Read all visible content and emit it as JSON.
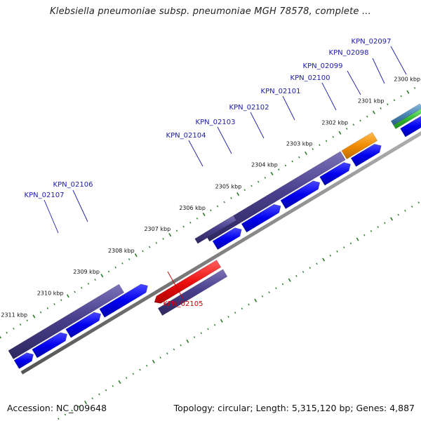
{
  "title": "Klebsiella pneumoniae subsp. pneumoniae MGH 78578, complete ...",
  "footer": {
    "accession": "Accession: NC_009648",
    "summary": "Topology: circular; Length: 5,315,120 bp; Genes: 4,887"
  },
  "colors": {
    "gene_label": "#1a1aaa",
    "gene_label_highlight": "#cc0000",
    "cds_blue": "#0000ee",
    "gene_purple": "#4a3f8c",
    "highlight_red": "#ee1111",
    "orange": "#f08c00",
    "green": "#33bb33",
    "steelblue": "#4a86b4",
    "tick_green": "#2a7a2a",
    "backbone_gray": "#888888"
  },
  "position_ticks": [
    {
      "label": "2300 kbp"
    },
    {
      "label": "2301 kbp"
    },
    {
      "label": "2302 kbp"
    },
    {
      "label": "2303 kbp"
    },
    {
      "label": "2304 kbp"
    },
    {
      "label": "2305 kbp"
    },
    {
      "label": "2306 kbp"
    },
    {
      "label": "2307 kbp"
    },
    {
      "label": "2308 kbp"
    },
    {
      "label": "2309 kbp"
    },
    {
      "label": "2310 kbp"
    },
    {
      "label": "2311 kbp"
    }
  ],
  "genes": [
    {
      "label": "KPN_02097",
      "highlight": false
    },
    {
      "label": "KPN_02098",
      "highlight": false
    },
    {
      "label": "KPN_02099",
      "highlight": false
    },
    {
      "label": "KPN_02100",
      "highlight": false
    },
    {
      "label": "KPN_02101",
      "highlight": false
    },
    {
      "label": "KPN_02102",
      "highlight": false
    },
    {
      "label": "KPN_02103",
      "highlight": false
    },
    {
      "label": "KPN_02104",
      "highlight": false
    },
    {
      "label": "KPN_02105",
      "highlight": true
    },
    {
      "label": "KPN_02106",
      "highlight": false
    },
    {
      "label": "KPN_02107",
      "highlight": false
    }
  ]
}
